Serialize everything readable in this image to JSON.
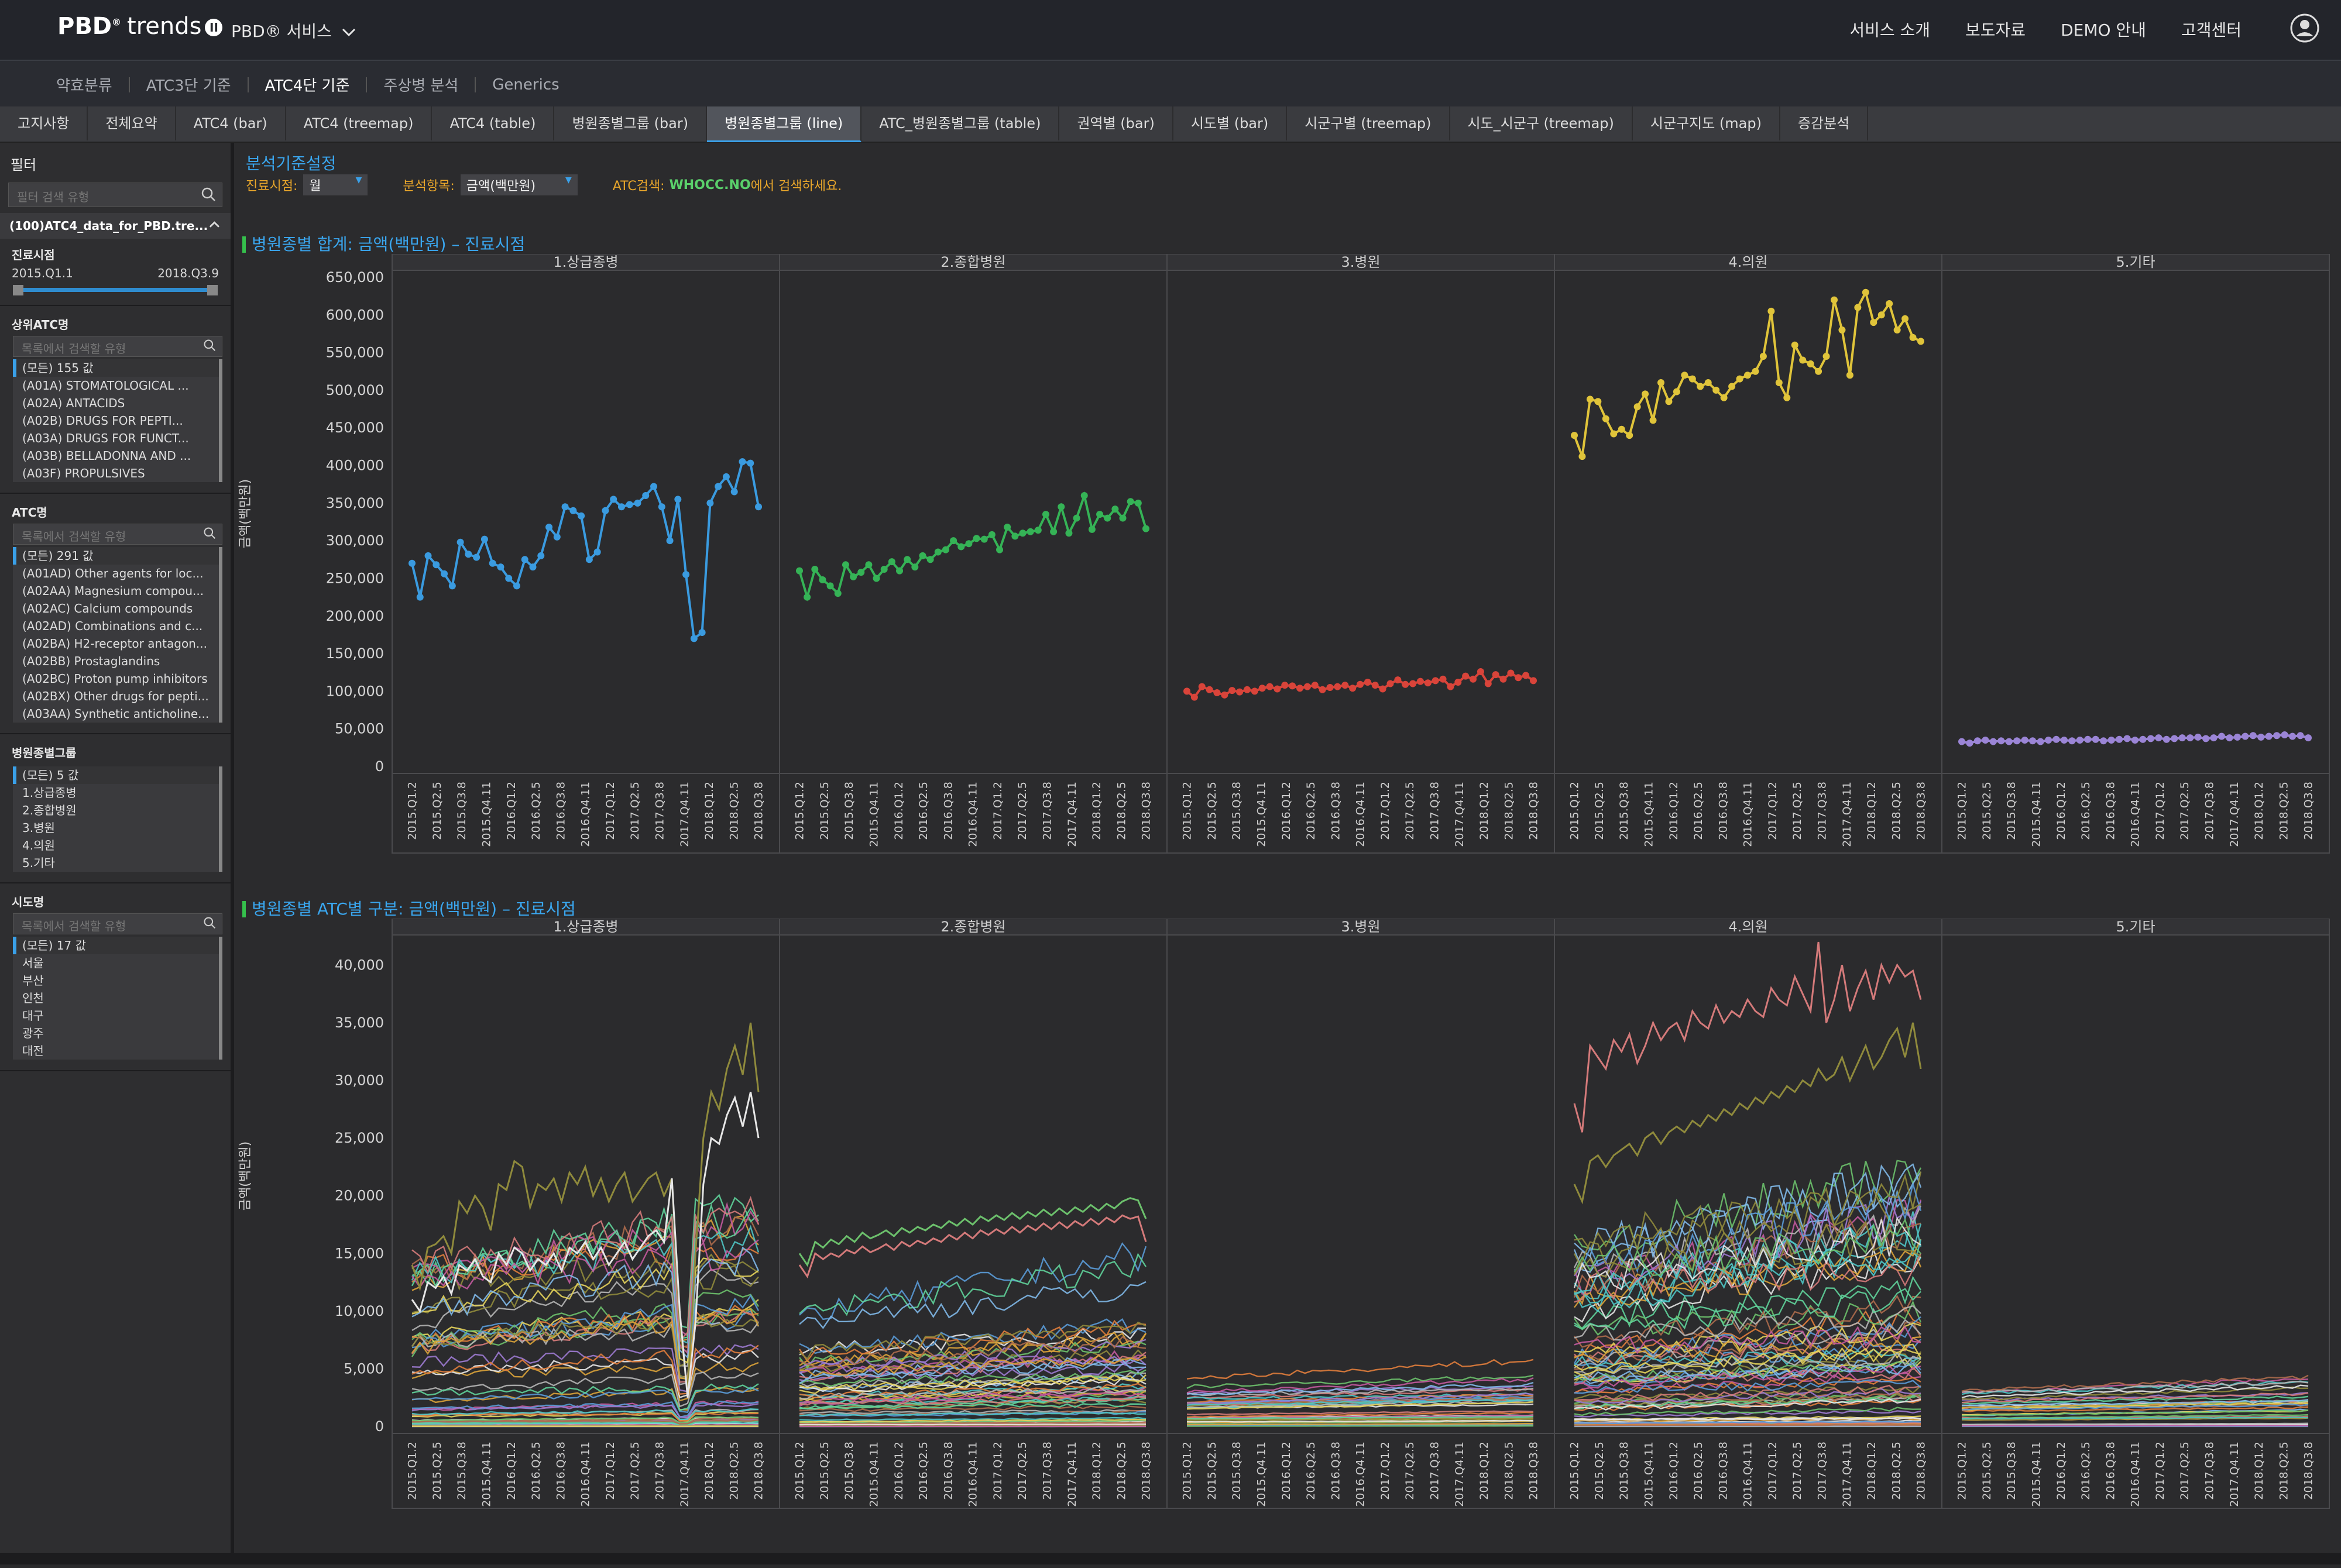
{
  "header": {
    "logo_main": "PBD",
    "logo_sup": "®",
    "logo_trends": "trends",
    "logo_badge": "II",
    "service_menu": "PBD® 서비스",
    "nav": [
      "서비스 소개",
      "보도자료",
      "DEMO 안내",
      "고객센터"
    ]
  },
  "subnav": {
    "items": [
      "약효분류",
      "ATC3단 기준",
      "ATC4단 기준",
      "주상병 분석",
      "Generics"
    ],
    "active_index": 2
  },
  "tabs": {
    "items": [
      "고지사항",
      "전체요약",
      "ATC4 (bar)",
      "ATC4 (treemap)",
      "ATC4 (table)",
      "병원종별그룹 (bar)",
      "병원종별그룹 (line)",
      "ATC_병원종별그룹 (table)",
      "권역별 (bar)",
      "시도별 (bar)",
      "시군구별 (treemap)",
      "시도_시군구 (treemap)",
      "시군구지도 (map)",
      "증감분석"
    ],
    "active_index": 6
  },
  "sidebar": {
    "title": "필터",
    "search_placeholder": "필터 검색 유형",
    "source": "(100)ATC4_data_for_PBD.tre...",
    "period": {
      "title": "진료시점",
      "from": "2015.Q1.1",
      "to": "2018.Q3.9"
    },
    "upper_atc": {
      "title": "상위ATC명",
      "placeholder": "목록에서 검색할 유형",
      "items": [
        "(모든) 155 값",
        "(A01A) STOMATOLOGICAL ...",
        "(A02A) ANTACIDS",
        "(A02B) DRUGS FOR PEPTI...",
        "(A03A) DRUGS FOR FUNCT...",
        "(A03B) BELLADONNA AND ...",
        "(A03F) PROPULSIVES"
      ]
    },
    "atc": {
      "title": "ATC명",
      "placeholder": "목록에서 검색할 유형",
      "items": [
        "(모든) 291 값",
        "(A01AD) Other agents for loc...",
        "(A02AA) Magnesium compou...",
        "(A02AC) Calcium compounds",
        "(A02AD) Combinations and c...",
        "(A02BA) H2-receptor antagon...",
        "(A02BB) Prostaglandins",
        "(A02BC) Proton pump inhibitors",
        "(A02BX) Other drugs for pepti...",
        "(A03AA) Synthetic anticholine..."
      ]
    },
    "hospital_group": {
      "title": "병원종별그룹",
      "items": [
        "(모든) 5 값",
        "1.상급종병",
        "2.종합병원",
        "3.병원",
        "4.의원",
        "5.기타"
      ]
    },
    "sido": {
      "title": "시도명",
      "placeholder": "목록에서 검색할 유형",
      "items": [
        "(모든) 17 값",
        "서울",
        "부산",
        "인천",
        "대구",
        "광주",
        "대전"
      ]
    }
  },
  "controls": {
    "title": "분석기준설정",
    "period_label": "진료시점:",
    "period_value": "월",
    "item_label": "분석항목:",
    "item_value": "금액(백만원)",
    "atc_search_prefix": "ATC검색:",
    "atc_search_link": "WHOCC.NO",
    "atc_search_suffix": "에서 검색하세요."
  },
  "chart_data": [
    {
      "type": "line",
      "title": "병원종별 합계: 금액(백만원) – 진료시점",
      "ylabel": "금액(백만원)",
      "ylim": [
        0,
        650000
      ],
      "yticks": [
        "650,000",
        "600,000",
        "550,000",
        "500,000",
        "450,000",
        "400,000",
        "350,000",
        "300,000",
        "250,000",
        "200,000",
        "150,000",
        "100,000",
        "50,000",
        "0"
      ],
      "panels": [
        "1.상급종병",
        "2.종합병원",
        "3.병원",
        "4.의원",
        "5.기타"
      ],
      "xticks": [
        "2015.Q1.2",
        "2015.Q2.5",
        "2015.Q3.8",
        "2015.Q4.11",
        "2016.Q1.2",
        "2016.Q2.5",
        "2016.Q3.8",
        "2016.Q4.11",
        "2017.Q1.2",
        "2017.Q2.5",
        "2017.Q3.8",
        "2017.Q4.11",
        "2018.Q1.2",
        "2018.Q2.5",
        "2018.Q3.8"
      ],
      "series": [
        {
          "panel": "1.상급종병",
          "color": "#3a9be0",
          "values": [
            270000,
            225000,
            280000,
            268000,
            256000,
            240000,
            298000,
            282000,
            278000,
            302000,
            270000,
            265000,
            250000,
            240000,
            275000,
            265000,
            280000,
            318000,
            305000,
            345000,
            340000,
            333000,
            275000,
            285000,
            340000,
            355000,
            345000,
            348000,
            350000,
            360000,
            372000,
            345000,
            300000,
            355000,
            255000,
            170000,
            178000,
            350000,
            372000,
            385000,
            365000,
            405000,
            403000,
            345000
          ]
        },
        {
          "panel": "2.종합병원",
          "color": "#35b356",
          "values": [
            260000,
            225000,
            262000,
            248000,
            240000,
            230000,
            268000,
            252000,
            258000,
            268000,
            250000,
            262000,
            272000,
            260000,
            275000,
            265000,
            280000,
            275000,
            285000,
            288000,
            300000,
            292000,
            296000,
            303000,
            302000,
            308000,
            288000,
            318000,
            306000,
            310000,
            312000,
            314000,
            335000,
            312000,
            345000,
            310000,
            330000,
            360000,
            315000,
            335000,
            330000,
            342000,
            330000,
            352000,
            350000,
            316000
          ]
        },
        {
          "panel": "3.병원",
          "color": "#d9443a",
          "values": [
            100000,
            92000,
            106000,
            102000,
            98000,
            95000,
            101000,
            99000,
            102000,
            100000,
            104000,
            106000,
            103000,
            108000,
            107000,
            104000,
            106000,
            108000,
            102000,
            105000,
            106000,
            108000,
            104000,
            109000,
            112000,
            108000,
            103000,
            110000,
            115000,
            109000,
            110000,
            113000,
            111000,
            114000,
            116000,
            106000,
            112000,
            120000,
            116000,
            126000,
            110000,
            122000,
            116000,
            124000,
            118000,
            121000,
            114000
          ]
        },
        {
          "panel": "4.의원",
          "color": "#e0c43a",
          "values": [
            440000,
            412000,
            488000,
            485000,
            462000,
            442000,
            448000,
            440000,
            478000,
            495000,
            460000,
            510000,
            485000,
            498000,
            520000,
            515000,
            505000,
            510000,
            500000,
            490000,
            505000,
            515000,
            520000,
            525000,
            545000,
            605000,
            510000,
            490000,
            560000,
            540000,
            535000,
            525000,
            545000,
            620000,
            580000,
            520000,
            610000,
            630000,
            590000,
            600000,
            615000,
            580000,
            595000,
            570000,
            565000
          ]
        },
        {
          "panel": "5.기타",
          "color": "#9b85d6",
          "values": [
            33000,
            31000,
            34000,
            35000,
            33000,
            34000,
            33000,
            34000,
            35000,
            34000,
            33000,
            35000,
            36000,
            35000,
            34000,
            35000,
            36000,
            36000,
            34000,
            35000,
            36000,
            37000,
            35000,
            36000,
            37000,
            38000,
            36000,
            37000,
            38000,
            38000,
            39000,
            37000,
            38000,
            40000,
            38000,
            39000,
            40000,
            41000,
            39000,
            40000,
            41000,
            42000,
            40000,
            41000,
            38000
          ]
        }
      ]
    },
    {
      "type": "line",
      "title": "병원종별 ATC별 구분: 금액(백만원) – 진료시점",
      "ylabel": "금액(백만원)",
      "ylim": [
        0,
        42000
      ],
      "yticks": [
        "40,000",
        "35,000",
        "30,000",
        "25,000",
        "20,000",
        "15,000",
        "10,000",
        "5,000",
        "0"
      ],
      "panels": [
        "1.상급종병",
        "2.종합병원",
        "3.병원",
        "4.의원",
        "5.기타"
      ],
      "xticks": [
        "2015.Q1.2",
        "2015.Q2.5",
        "2015.Q3.8",
        "2015.Q4.11",
        "2016.Q1.2",
        "2016.Q2.5",
        "2016.Q3.8",
        "2016.Q4.11",
        "2017.Q1.2",
        "2017.Q2.5",
        "2017.Q3.8",
        "2017.Q4.11",
        "2018.Q1.2",
        "2018.Q2.5",
        "2018.Q3.8"
      ],
      "palette": [
        "#d47a7a",
        "#8f8a3c",
        "#e6e6e6",
        "#6cc06c",
        "#5a9ad6",
        "#d9a23a",
        "#c35a9e",
        "#4fc4c4",
        "#e07d3c",
        "#9c7ad0",
        "#b5b5b5",
        "#7fb8e8",
        "#e3d25b",
        "#ad6b4c",
        "#5fd19a"
      ],
      "panel_levels": [
        {
          "panel": "1.상급종병",
          "top_series": [
            {
              "name": "",
              "values": [
                14000,
                12000,
                15500,
                15800,
                16500,
                15000,
                19500,
                18500,
                20000,
                19000,
                17000,
                21000,
                20500,
                23000,
                22500,
                19000,
                21000,
                20500,
                21500,
                19500,
                22000,
                21000,
                22500,
                20000,
                21500,
                19500,
                21000,
                22000,
                19500,
                20500,
                21500,
                22000,
                20000,
                21500,
                9000,
                3000,
                15000,
                25000,
                29000,
                27500,
                31000,
                33000,
                30500,
                35000,
                29000
              ]
            }
          ],
          "base_level": 8000
        }
      ]
    }
  ]
}
